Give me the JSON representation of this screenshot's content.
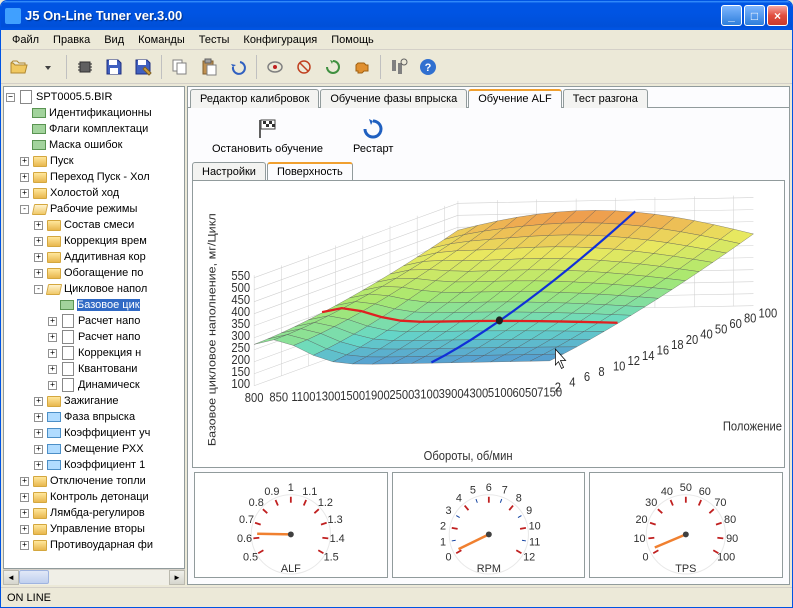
{
  "window": {
    "title": "J5 On-Line Tuner ver.3.00"
  },
  "menu": [
    "Файл",
    "Правка",
    "Вид",
    "Команды",
    "Тесты",
    "Конфигурация",
    "Помощь"
  ],
  "tree": {
    "root": "SPT0005.5.BIR",
    "items": [
      {
        "d": 1,
        "i": "tag",
        "l": "Идентификационны",
        "e": null
      },
      {
        "d": 1,
        "i": "tag",
        "l": "Флаги комплектаци",
        "e": null
      },
      {
        "d": 1,
        "i": "tag",
        "l": "Маска ошибок",
        "e": null
      },
      {
        "d": 1,
        "i": "fc",
        "l": "Пуск",
        "e": "+"
      },
      {
        "d": 1,
        "i": "fc",
        "l": "Переход Пуск - Хол",
        "e": "+"
      },
      {
        "d": 1,
        "i": "fc",
        "l": "Холостой ход",
        "e": "+"
      },
      {
        "d": 1,
        "i": "fo",
        "l": "Рабочие режимы",
        "e": "-"
      },
      {
        "d": 2,
        "i": "fc",
        "l": "Состав смеси",
        "e": "+"
      },
      {
        "d": 2,
        "i": "fc",
        "l": "Коррекция врем",
        "e": "+"
      },
      {
        "d": 2,
        "i": "fc",
        "l": "Аддитивная кор",
        "e": "+"
      },
      {
        "d": 2,
        "i": "fc",
        "l": "Обогащение по",
        "e": "+"
      },
      {
        "d": 2,
        "i": "fo",
        "l": "Цикловое напол",
        "e": "-"
      },
      {
        "d": 3,
        "i": "tag",
        "l": "Базовое цик",
        "e": null,
        "sel": true
      },
      {
        "d": 3,
        "i": "doc",
        "l": "Расчет напо",
        "e": "+"
      },
      {
        "d": 3,
        "i": "doc",
        "l": "Расчет напо",
        "e": "+"
      },
      {
        "d": 3,
        "i": "doc",
        "l": "Коррекция н",
        "e": "+"
      },
      {
        "d": 3,
        "i": "doc",
        "l": "Квантовани",
        "e": "+"
      },
      {
        "d": 3,
        "i": "doc",
        "l": "Динамическ",
        "e": "+"
      },
      {
        "d": 2,
        "i": "fc",
        "l": "Зажигание",
        "e": "+"
      },
      {
        "d": 2,
        "i": "tbl",
        "l": "Фаза впрыска",
        "e": "+"
      },
      {
        "d": 2,
        "i": "tbl",
        "l": "Коэффициент уч",
        "e": "+"
      },
      {
        "d": 2,
        "i": "tbl",
        "l": "Смещение РХХ",
        "e": "+"
      },
      {
        "d": 2,
        "i": "tbl",
        "l": "Коэффициент 1",
        "e": "+"
      },
      {
        "d": 1,
        "i": "fc",
        "l": "Отключение топли",
        "e": "+"
      },
      {
        "d": 1,
        "i": "fc",
        "l": "Контроль детонаци",
        "e": "+"
      },
      {
        "d": 1,
        "i": "fc",
        "l": "Лямбда-регулиров",
        "e": "+"
      },
      {
        "d": 1,
        "i": "fc",
        "l": "Управление вторы",
        "e": "+"
      },
      {
        "d": 1,
        "i": "fc",
        "l": "Противоударная фи",
        "e": "+"
      }
    ]
  },
  "main_tabs": [
    "Редактор калибровок",
    "Обучение фазы впрыска",
    "Обучение ALF",
    "Тест разгона"
  ],
  "main_tab_active": 2,
  "actions": [
    {
      "label": "Остановить обучение",
      "icon": "flag"
    },
    {
      "label": "Рестарт",
      "icon": "reload"
    }
  ],
  "subtabs": [
    "Настройки",
    "Поверхность"
  ],
  "subtab_active": 1,
  "chart3d": {
    "z_axis_label": "Базовое цикловое наполнение, мг/Цикл",
    "x_axis_label": "Обороты, об/мин",
    "y_axis_label": "Положение дроссе",
    "z_ticks": [
      100,
      150,
      200,
      250,
      300,
      350,
      400,
      450,
      500,
      550
    ],
    "x_ticks": [
      800,
      850,
      1100,
      1300,
      1500,
      1900,
      2500,
      3100,
      3900,
      4300,
      5100,
      6050,
      7150
    ],
    "y_ticks": [
      2,
      4,
      6,
      8,
      10,
      12,
      14,
      16,
      18,
      20,
      40,
      50,
      60,
      80,
      100
    ],
    "highlight_lines": {
      "red": "#e02020",
      "blue": "#1030d8"
    },
    "surface_colors": {
      "low": "#4a70d8",
      "low_mid": "#66d8c8",
      "mid": "#a8e870",
      "mid_high": "#e8e860",
      "high": "#f0a850",
      "very_high": "#e06040"
    },
    "background": "#ffffff",
    "grid_color": "#404040",
    "marker": {
      "x_idx": 7,
      "y_idx": 5
    }
  },
  "gauges": [
    {
      "name": "ALF",
      "min": 0.5,
      "max": 1.5,
      "value": 0.63,
      "ticks": [
        0.5,
        0.6,
        0.7,
        0.8,
        0.9,
        1.0,
        1.1,
        1.2,
        1.3,
        1.4,
        1.5
      ],
      "needle_color": "#f08030",
      "major_tick_color": "#c02020"
    },
    {
      "name": "RPM",
      "min": 0,
      "max": 12,
      "value": 0.2,
      "ticks": [
        0,
        1,
        2,
        3,
        4,
        5,
        6,
        7,
        8,
        9,
        10,
        11,
        12
      ],
      "needle_color": "#f08030",
      "major_tick_color": "#c02020"
    },
    {
      "name": "TPS",
      "min": 0,
      "max": 100,
      "value": 3,
      "ticks": [
        0,
        10,
        20,
        30,
        40,
        50,
        60,
        70,
        80,
        90,
        100
      ],
      "needle_color": "#f08030",
      "major_tick_color": "#c02020"
    }
  ],
  "status": "ON LINE"
}
